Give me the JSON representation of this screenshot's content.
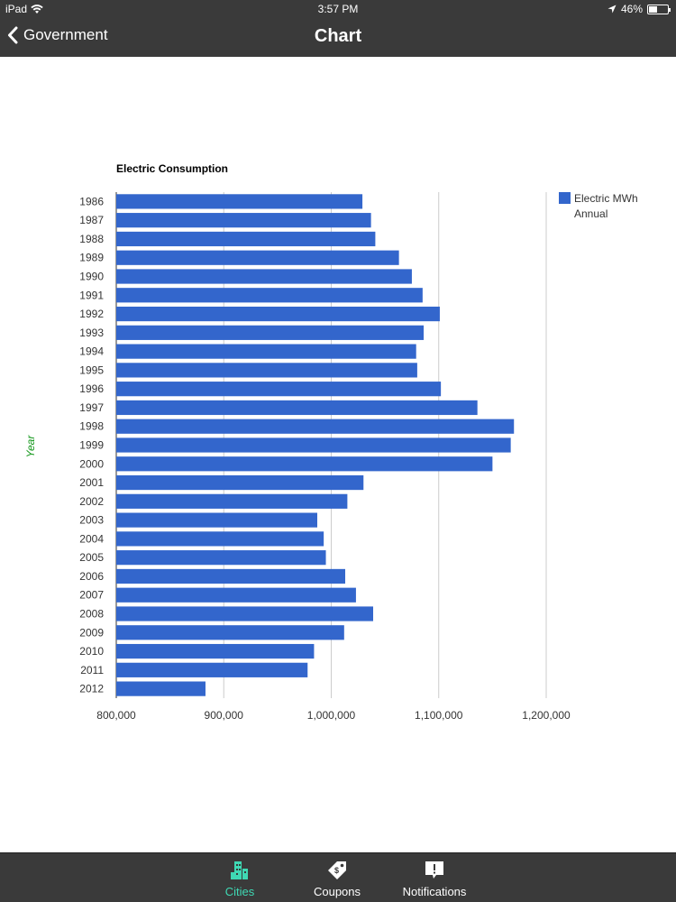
{
  "status_bar": {
    "device": "iPad",
    "time": "3:57 PM",
    "battery": "46%",
    "battery_level": 0.46
  },
  "nav": {
    "back_label": "Government",
    "title": "Chart"
  },
  "tabs": [
    {
      "label": "Cities",
      "icon": "cities-icon",
      "active": true
    },
    {
      "label": "Coupons",
      "icon": "coupon-tag-icon",
      "active": false
    },
    {
      "label": "Notifications",
      "icon": "notification-bubble-icon",
      "active": false
    }
  ],
  "colors": {
    "bar": "#3366cc",
    "bars_bar": "#3a3a3a",
    "accent": "#3fd9b4",
    "ylabel": "#109618",
    "grid": "#cccccc"
  },
  "chart_data": {
    "type": "bar",
    "orientation": "horizontal",
    "title": "Electric Consumption",
    "ylabel": "Year",
    "xlabel": "",
    "xlim": [
      800000,
      1200000
    ],
    "x_ticks": [
      800000,
      900000,
      1000000,
      1100000,
      1200000
    ],
    "x_tick_labels": [
      "800,000",
      "900,000",
      "1,000,000",
      "1,100,000",
      "1,200,000"
    ],
    "grid": true,
    "legend_position": "right",
    "legend": [
      "Electric MWh",
      "Annual"
    ],
    "categories": [
      "1986",
      "1987",
      "1988",
      "1989",
      "1990",
      "1991",
      "1992",
      "1993",
      "1994",
      "1995",
      "1996",
      "1997",
      "1998",
      "1999",
      "2000",
      "2001",
      "2002",
      "2003",
      "2004",
      "2005",
      "2006",
      "2007",
      "2008",
      "2009",
      "2010",
      "2011",
      "2012"
    ],
    "series": [
      {
        "name": "Electric MWh Annual",
        "values": [
          1029000,
          1037000,
          1041000,
          1063000,
          1075000,
          1085000,
          1101000,
          1086000,
          1079000,
          1080000,
          1102000,
          1136000,
          1170000,
          1167000,
          1150000,
          1030000,
          1015000,
          987000,
          993000,
          995000,
          1013000,
          1023000,
          1039000,
          1012000,
          984000,
          978000,
          883000
        ]
      }
    ]
  }
}
